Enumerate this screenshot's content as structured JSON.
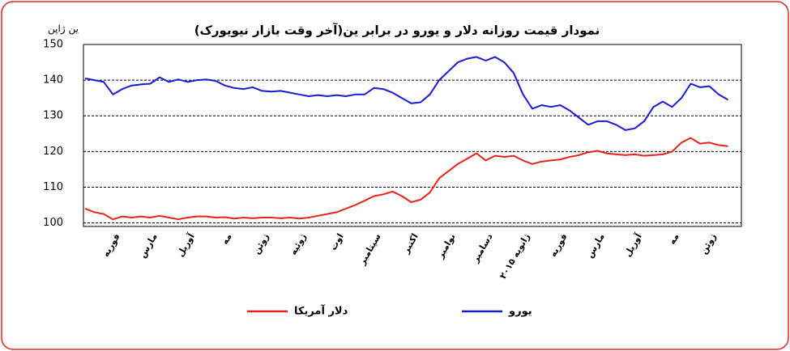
{
  "chart_data": {
    "type": "line",
    "title": "نمودار قیمت روزانه دلار و یورو در برابر ین(آخر وقت بازار نیویورک)",
    "y_label": "ین ژاپن",
    "categories": [
      null,
      null,
      null,
      "فوریه",
      null,
      null,
      null,
      "مارس",
      null,
      null,
      null,
      "آوریل",
      null,
      null,
      null,
      "مه",
      null,
      null,
      null,
      "ژوئن",
      null,
      null,
      null,
      "ژوئیه",
      null,
      null,
      null,
      "اوت",
      null,
      null,
      null,
      "سپتامبر",
      null,
      null,
      null,
      "اکتبر",
      null,
      null,
      null,
      "نوامبر",
      null,
      null,
      null,
      "دسامبر",
      null,
      null,
      null,
      "ژانویه ۲۰۱۵",
      null,
      null,
      null,
      "فوریه",
      null,
      null,
      null,
      "مارس",
      null,
      null,
      null,
      "آوریل",
      null,
      null,
      null,
      "مه",
      null,
      null,
      null,
      "ژوئن",
      null,
      null
    ],
    "series": [
      {
        "name": "دلار آمریکا",
        "color": "#e8231e",
        "values": [
          104,
          103,
          102.5,
          101,
          101.8,
          101.5,
          101.8,
          101.5,
          102,
          101.5,
          101,
          101.5,
          101.8,
          101.8,
          101.5,
          101.6,
          101.2,
          101.5,
          101.3,
          101.5,
          101.5,
          101.3,
          101.5,
          101.2,
          101.5,
          102,
          102.5,
          103,
          104,
          105,
          106.2,
          107.5,
          108,
          108.8,
          107.5,
          105.8,
          106.5,
          108.5,
          112.5,
          114.5,
          116.5,
          118,
          119.5,
          117.5,
          118.8,
          118.5,
          118.8,
          117.5,
          116.5,
          117.2,
          117.5,
          117.8,
          118.5,
          119,
          119.8,
          120.2,
          119.5,
          119.2,
          119,
          119.2,
          118.8,
          119,
          119.2,
          120,
          122.5,
          123.8,
          122.2,
          122.5,
          121.8,
          121.5
        ]
      },
      {
        "name": "یورو",
        "color": "#1c1ccf",
        "values": [
          140.5,
          140,
          139.5,
          136,
          137.5,
          138.5,
          138.8,
          139,
          140.8,
          139.5,
          140.2,
          139.5,
          140,
          140.2,
          139.8,
          138.5,
          137.8,
          137.5,
          138,
          137,
          136.8,
          137,
          136.5,
          136,
          135.5,
          135.8,
          135.5,
          135.8,
          135.5,
          136,
          136,
          137.8,
          137.5,
          136.5,
          135,
          133.5,
          133.8,
          136,
          140,
          142.5,
          145,
          146,
          146.5,
          145.5,
          146.5,
          145,
          142,
          136,
          132,
          133,
          132.5,
          133,
          131.5,
          129.5,
          127.5,
          128.5,
          128.5,
          127.5,
          126,
          126.5,
          128.5,
          132.5,
          134,
          132.5,
          135,
          139,
          138,
          138.3,
          136,
          134.5
        ]
      }
    ],
    "ylim": [
      99,
      150
    ],
    "yticks": [
      100,
      110,
      120,
      130,
      140,
      150
    ],
    "grid": true,
    "legend": "bottom"
  }
}
